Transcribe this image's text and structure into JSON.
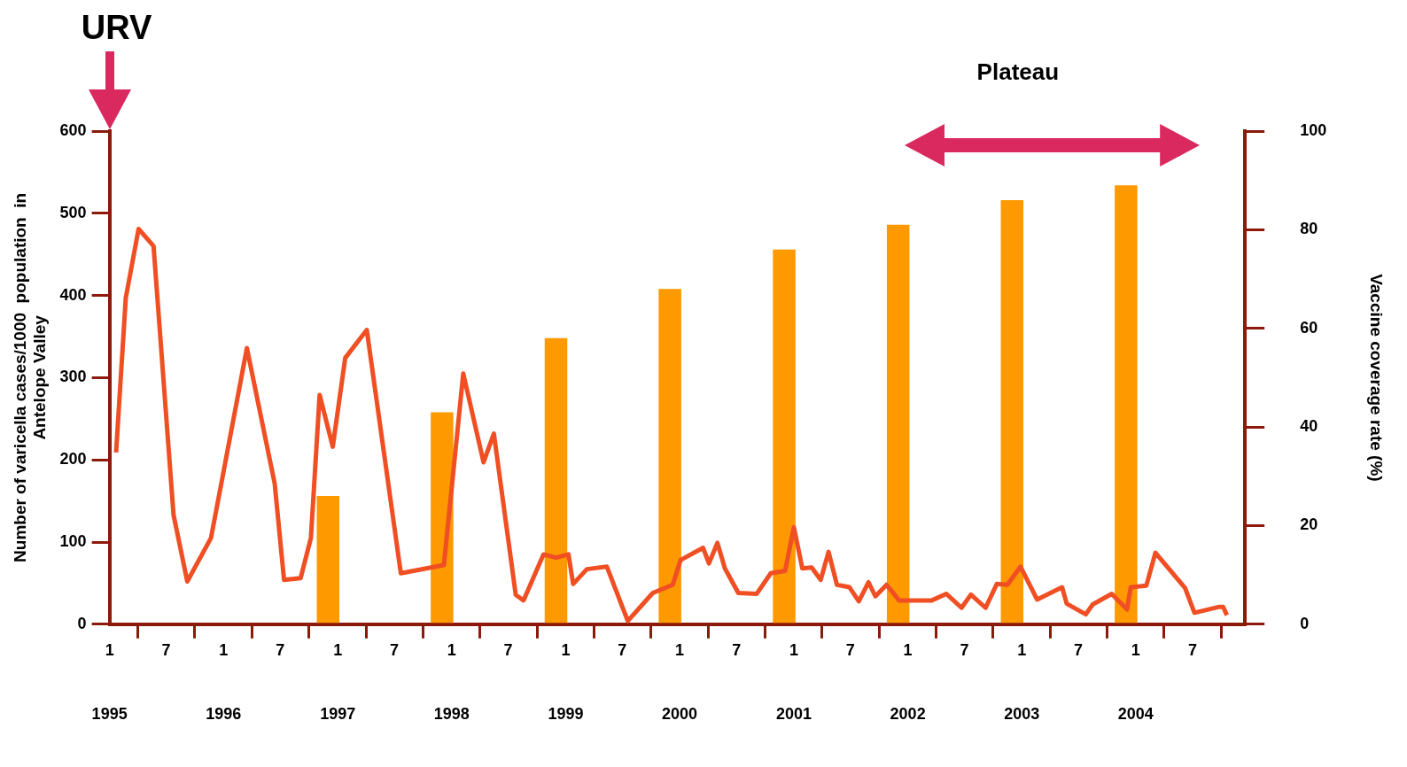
{
  "chart_data": {
    "type": "line",
    "ylabel": "Number of varicella cases/1000  population  in Antelope Valley",
    "y2label": "Vaccine coverage rate (%)",
    "xlim": [
      "1995-01-01",
      "2004-12-16"
    ],
    "xticks": [
      {
        "value": "1995-01",
        "label": "1"
      },
      {
        "value": "1995-07",
        "label": "7"
      },
      {
        "value": "1996-01",
        "label": "1"
      },
      {
        "value": "1996-07",
        "label": "7"
      },
      {
        "value": "1997-01",
        "label": "1"
      },
      {
        "value": "1997-07",
        "label": "7"
      },
      {
        "value": "1998-01",
        "label": "1"
      },
      {
        "value": "1998-07",
        "label": "7"
      },
      {
        "value": "1999-01",
        "label": "1"
      },
      {
        "value": "1999-07",
        "label": "7"
      },
      {
        "value": "2000-01",
        "label": "1"
      },
      {
        "value": "2000-07",
        "label": "7"
      },
      {
        "value": "2001-01",
        "label": "1"
      },
      {
        "value": "2001-07",
        "label": "7"
      },
      {
        "value": "2002-01",
        "label": "1"
      },
      {
        "value": "2002-07",
        "label": "7"
      },
      {
        "value": "2003-01",
        "label": "1"
      },
      {
        "value": "2003-07",
        "label": "7"
      },
      {
        "value": "2004-01",
        "label": "1"
      },
      {
        "value": "2004-07",
        "label": "7"
      }
    ],
    "x2lim": [
      "1995-01-01",
      "2004-12-16"
    ],
    "x2ticks": [
      "1995",
      "1996",
      "1997",
      "1998",
      "1999",
      "2000",
      "2001",
      "2002",
      "2003",
      "2004"
    ],
    "ylim": [
      0,
      600
    ],
    "yticks": [
      0,
      100,
      200,
      300,
      400,
      500,
      600
    ],
    "y2lim": [
      0,
      100
    ],
    "y2ticks": [
      0,
      20,
      40,
      60,
      80,
      100
    ],
    "grid": false,
    "legend": false,
    "marker": "none",
    "line_style": "solid",
    "series": [
      {
        "type": "bar",
        "axis": "y2",
        "color": "#ff9900",
        "x": [
          "1996-12",
          "1997-12",
          "1998-12",
          "1999-12",
          "2000-12",
          "2001-12",
          "2002-12",
          "2003-12"
        ],
        "values": [
          26,
          43,
          58,
          68,
          76,
          81,
          86,
          89
        ]
      },
      {
        "axis": "y",
        "color": "#f04e23",
        "x": [
          "1995-01-22",
          "1995-02-22",
          "1995-04-04",
          "1995-05-22",
          "1995-07-25",
          "1995-09-07",
          "1995-11-22",
          "1996-03-16",
          "1996-06-13",
          "1996-07-13",
          "1996-09-04",
          "1996-10-07",
          "1996-11-04",
          "1996-12-16",
          "1997-01-25",
          "1997-04-04",
          "1997-07-22",
          "1997-12-07",
          "1998-02-07",
          "1998-04-13",
          "1998-05-16",
          "1998-07-25",
          "1998-08-19",
          "1998-10-22",
          "1998-12-01",
          "1999-01-10",
          "1999-01-25",
          "1999-03-10",
          "1999-05-13",
          "1999-07-19",
          "1999-10-07",
          "1999-12-10",
          "2000-01-04",
          "2000-03-16",
          "2000-04-04",
          "2000-05-01",
          "2000-05-25",
          "2000-07-07",
          "2000-09-04",
          "2000-10-19",
          "2000-12-04",
          "2001-01-01",
          "2001-01-28",
          "2001-02-27",
          "2001-03-28",
          "2001-04-22",
          "2001-05-19",
          "2001-06-28",
          "2001-07-28",
          "2001-08-28",
          "2001-09-19",
          "2001-10-25",
          "2001-12-04",
          "2002-03-19",
          "2002-05-04",
          "2002-06-22",
          "2002-07-22",
          "2002-09-07",
          "2002-10-13",
          "2002-11-16",
          "2002-12-28",
          "2003-02-19",
          "2003-05-10",
          "2003-05-25",
          "2003-07-25",
          "2003-08-16",
          "2003-10-16",
          "2003-12-04",
          "2003-12-16",
          "2004-02-04",
          "2004-03-04",
          "2004-06-07",
          "2004-07-07",
          "2004-09-22",
          "2004-10-07",
          "2004-10-19"
        ],
        "values": [
          209,
          397,
          481,
          460,
          133,
          52,
          105,
          336,
          171,
          54,
          56,
          105,
          279,
          216,
          324,
          358,
          62,
          72,
          305,
          197,
          232,
          36,
          29,
          85,
          81,
          85,
          49,
          67,
          70,
          4,
          38,
          48,
          78,
          93,
          74,
          99,
          68,
          38,
          37,
          62,
          65,
          118,
          68,
          69,
          54,
          88,
          48,
          45,
          28,
          51,
          34,
          48,
          29,
          29,
          37,
          20,
          36,
          20,
          49,
          48,
          70,
          30,
          45,
          25,
          12,
          24,
          37,
          18,
          45,
          47,
          87,
          44,
          14,
          21,
          21,
          11
        ]
      }
    ],
    "annotations": [
      "URV",
      "Plateau"
    ]
  }
}
